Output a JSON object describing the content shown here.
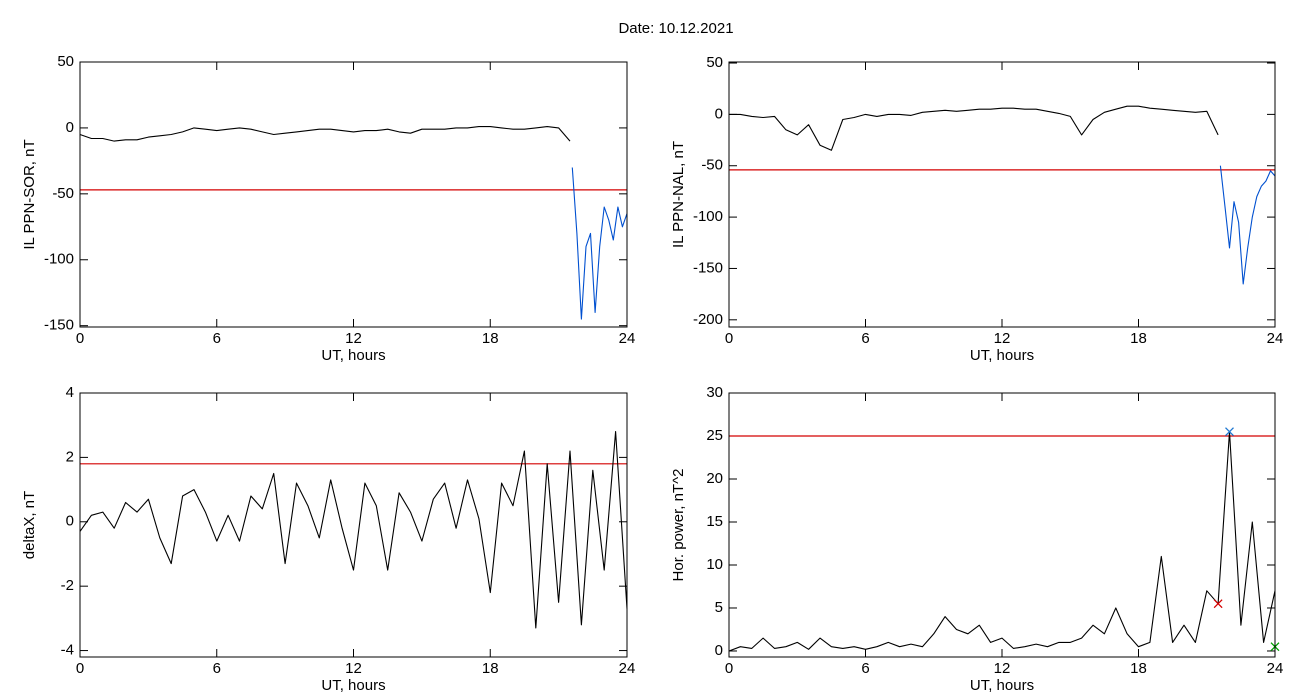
{
  "title": "Date:  10.12.2021",
  "chart_data": [
    {
      "type": "line",
      "ylabel": "IL PPN-SOR, nT",
      "xlabel": "UT, hours",
      "xlim": [
        0,
        24
      ],
      "xticks": [
        0,
        6,
        12,
        18,
        24
      ],
      "ylim": [
        -151,
        50
      ],
      "yticks": [
        -150,
        -100,
        -50,
        0,
        50
      ],
      "threshold": {
        "value": -47,
        "color": "#d40000"
      },
      "series": [
        {
          "color": "#000000",
          "x": [
            0,
            0.5,
            1,
            1.5,
            2,
            2.5,
            3,
            3.5,
            4,
            4.5,
            5,
            5.5,
            6,
            6.5,
            7,
            7.5,
            8,
            8.5,
            9,
            9.5,
            10,
            10.5,
            11,
            11.5,
            12,
            12.5,
            13,
            13.5,
            14,
            14.5,
            15,
            15.5,
            16,
            16.5,
            17,
            17.5,
            18,
            18.5,
            19,
            19.5,
            20,
            20.5,
            21,
            21.5
          ],
          "values": [
            -5,
            -8,
            -8,
            -10,
            -9,
            -9,
            -7,
            -6,
            -5,
            -3,
            0,
            -1,
            -2,
            -1,
            0,
            -1,
            -3,
            -5,
            -4,
            -3,
            -2,
            -1,
            -1,
            -2,
            -3,
            -2,
            -2,
            -1,
            -3,
            -4,
            -1,
            -1,
            -1,
            0,
            0,
            1,
            1,
            0,
            -1,
            -1,
            0,
            1,
            0,
            -10
          ]
        },
        {
          "color": "#0050d0",
          "x": [
            21.6,
            21.8,
            22,
            22.2,
            22.4,
            22.6,
            22.8,
            23,
            23.2,
            23.4,
            23.6,
            23.8,
            24
          ],
          "values": [
            -30,
            -80,
            -145,
            -90,
            -80,
            -140,
            -90,
            -60,
            -70,
            -85,
            -60,
            -75,
            -65
          ]
        }
      ]
    },
    {
      "type": "line",
      "ylabel": "IL PPN-NAL, nT",
      "xlabel": "UT, hours",
      "xlim": [
        0,
        24
      ],
      "xticks": [
        0,
        6,
        12,
        18,
        24
      ],
      "ylim": [
        -207,
        51
      ],
      "yticks": [
        -200,
        -150,
        -100,
        -50,
        0,
        50
      ],
      "threshold": {
        "value": -54,
        "color": "#d40000"
      },
      "series": [
        {
          "color": "#000000",
          "x": [
            0,
            0.5,
            1,
            1.5,
            2,
            2.5,
            3,
            3.5,
            4,
            4.5,
            5,
            5.5,
            6,
            6.5,
            7,
            7.5,
            8,
            8.5,
            9,
            9.5,
            10,
            10.5,
            11,
            11.5,
            12,
            12.5,
            13,
            13.5,
            14,
            14.5,
            15,
            15.5,
            16,
            16.5,
            17,
            17.5,
            18,
            18.5,
            19,
            19.5,
            20,
            20.5,
            21,
            21.5
          ],
          "values": [
            0,
            0,
            -2,
            -3,
            -2,
            -15,
            -20,
            -10,
            -30,
            -35,
            -5,
            -3,
            0,
            -2,
            0,
            0,
            -1,
            2,
            3,
            4,
            3,
            4,
            5,
            5,
            6,
            6,
            5,
            5,
            3,
            1,
            -2,
            -20,
            -5,
            2,
            5,
            8,
            8,
            6,
            5,
            4,
            3,
            2,
            3,
            -20
          ]
        },
        {
          "color": "#0050d0",
          "x": [
            21.6,
            21.8,
            22,
            22.2,
            22.4,
            22.6,
            22.8,
            23,
            23.2,
            23.4,
            23.6,
            23.8,
            24
          ],
          "values": [
            -50,
            -90,
            -130,
            -85,
            -105,
            -165,
            -130,
            -100,
            -80,
            -70,
            -65,
            -55,
            -60
          ]
        }
      ]
    },
    {
      "type": "line",
      "ylabel": "deltaX, nT",
      "xlabel": "UT, hours",
      "xlim": [
        0,
        24
      ],
      "xticks": [
        0,
        6,
        12,
        18,
        24
      ],
      "ylim": [
        -4.2,
        4
      ],
      "yticks": [
        -4,
        -2,
        0,
        2,
        4
      ],
      "threshold": {
        "value": 1.8,
        "color": "#d40000"
      },
      "series": [
        {
          "color": "#000000",
          "x": [
            0,
            0.5,
            1,
            1.5,
            2,
            2.5,
            3,
            3.5,
            4,
            4.5,
            5,
            5.5,
            6,
            6.5,
            7,
            7.5,
            8,
            8.5,
            9,
            9.5,
            10,
            10.5,
            11,
            11.5,
            12,
            12.5,
            13,
            13.5,
            14,
            14.5,
            15,
            15.5,
            16,
            16.5,
            17,
            17.5,
            18,
            18.5,
            19,
            19.5,
            20,
            20.5,
            21,
            21.5,
            22,
            22.5,
            23,
            23.5,
            24
          ],
          "values": [
            -0.3,
            0.2,
            0.3,
            -0.2,
            0.6,
            0.3,
            0.7,
            -0.5,
            -1.3,
            0.8,
            1.0,
            0.3,
            -0.6,
            0.2,
            -0.6,
            0.8,
            0.4,
            1.5,
            -1.3,
            1.2,
            0.5,
            -0.5,
            1.3,
            -0.2,
            -1.5,
            1.2,
            0.5,
            -1.5,
            0.9,
            0.3,
            -0.6,
            0.7,
            1.2,
            -0.2,
            1.3,
            0.1,
            -2.2,
            1.2,
            0.5,
            2.2,
            -3.3,
            1.8,
            -2.5,
            2.2,
            -3.2,
            1.6,
            -1.5,
            2.8,
            -2.7
          ]
        }
      ]
    },
    {
      "type": "line",
      "ylabel": "Hor. power, nT^2",
      "xlabel": "UT, hours",
      "xlim": [
        0,
        24
      ],
      "xticks": [
        0,
        6,
        12,
        18,
        24
      ],
      "ylim": [
        -0.7,
        30
      ],
      "yticks": [
        0,
        5,
        10,
        15,
        20,
        25,
        30
      ],
      "threshold": {
        "value": 25,
        "color": "#d40000"
      },
      "series": [
        {
          "color": "#000000",
          "x": [
            0,
            0.5,
            1,
            1.5,
            2,
            2.5,
            3,
            3.5,
            4,
            4.5,
            5,
            5.5,
            6,
            6.5,
            7,
            7.5,
            8,
            8.5,
            9,
            9.5,
            10,
            10.5,
            11,
            11.5,
            12,
            12.5,
            13,
            13.5,
            14,
            14.5,
            15,
            15.5,
            16,
            16.5,
            17,
            17.5,
            18,
            18.5,
            19,
            19.5,
            20,
            20.5,
            21,
            21.5,
            22,
            22.5,
            23,
            23.5,
            24
          ],
          "values": [
            0,
            0.5,
            0.3,
            1.5,
            0.3,
            0.5,
            1,
            0.2,
            1.5,
            0.5,
            0.3,
            0.5,
            0.2,
            0.5,
            1,
            0.5,
            0.8,
            0.5,
            2,
            4,
            2.5,
            2,
            3,
            1,
            1.5,
            0.3,
            0.5,
            0.8,
            0.5,
            1,
            1,
            1.5,
            3,
            2,
            5,
            2,
            0.5,
            1,
            11,
            1,
            3,
            1,
            7,
            5.5,
            25.5,
            3,
            15,
            1,
            7
          ]
        },
        {
          "color": "#1f77d0",
          "marker": "x",
          "x": [
            22
          ],
          "values": [
            25.5
          ]
        },
        {
          "color": "#d40000",
          "marker": "x",
          "x": [
            21.5
          ],
          "values": [
            5.5
          ]
        },
        {
          "color": "#00a000",
          "marker": "x",
          "x": [
            24
          ],
          "values": [
            0.5
          ]
        }
      ]
    }
  ]
}
